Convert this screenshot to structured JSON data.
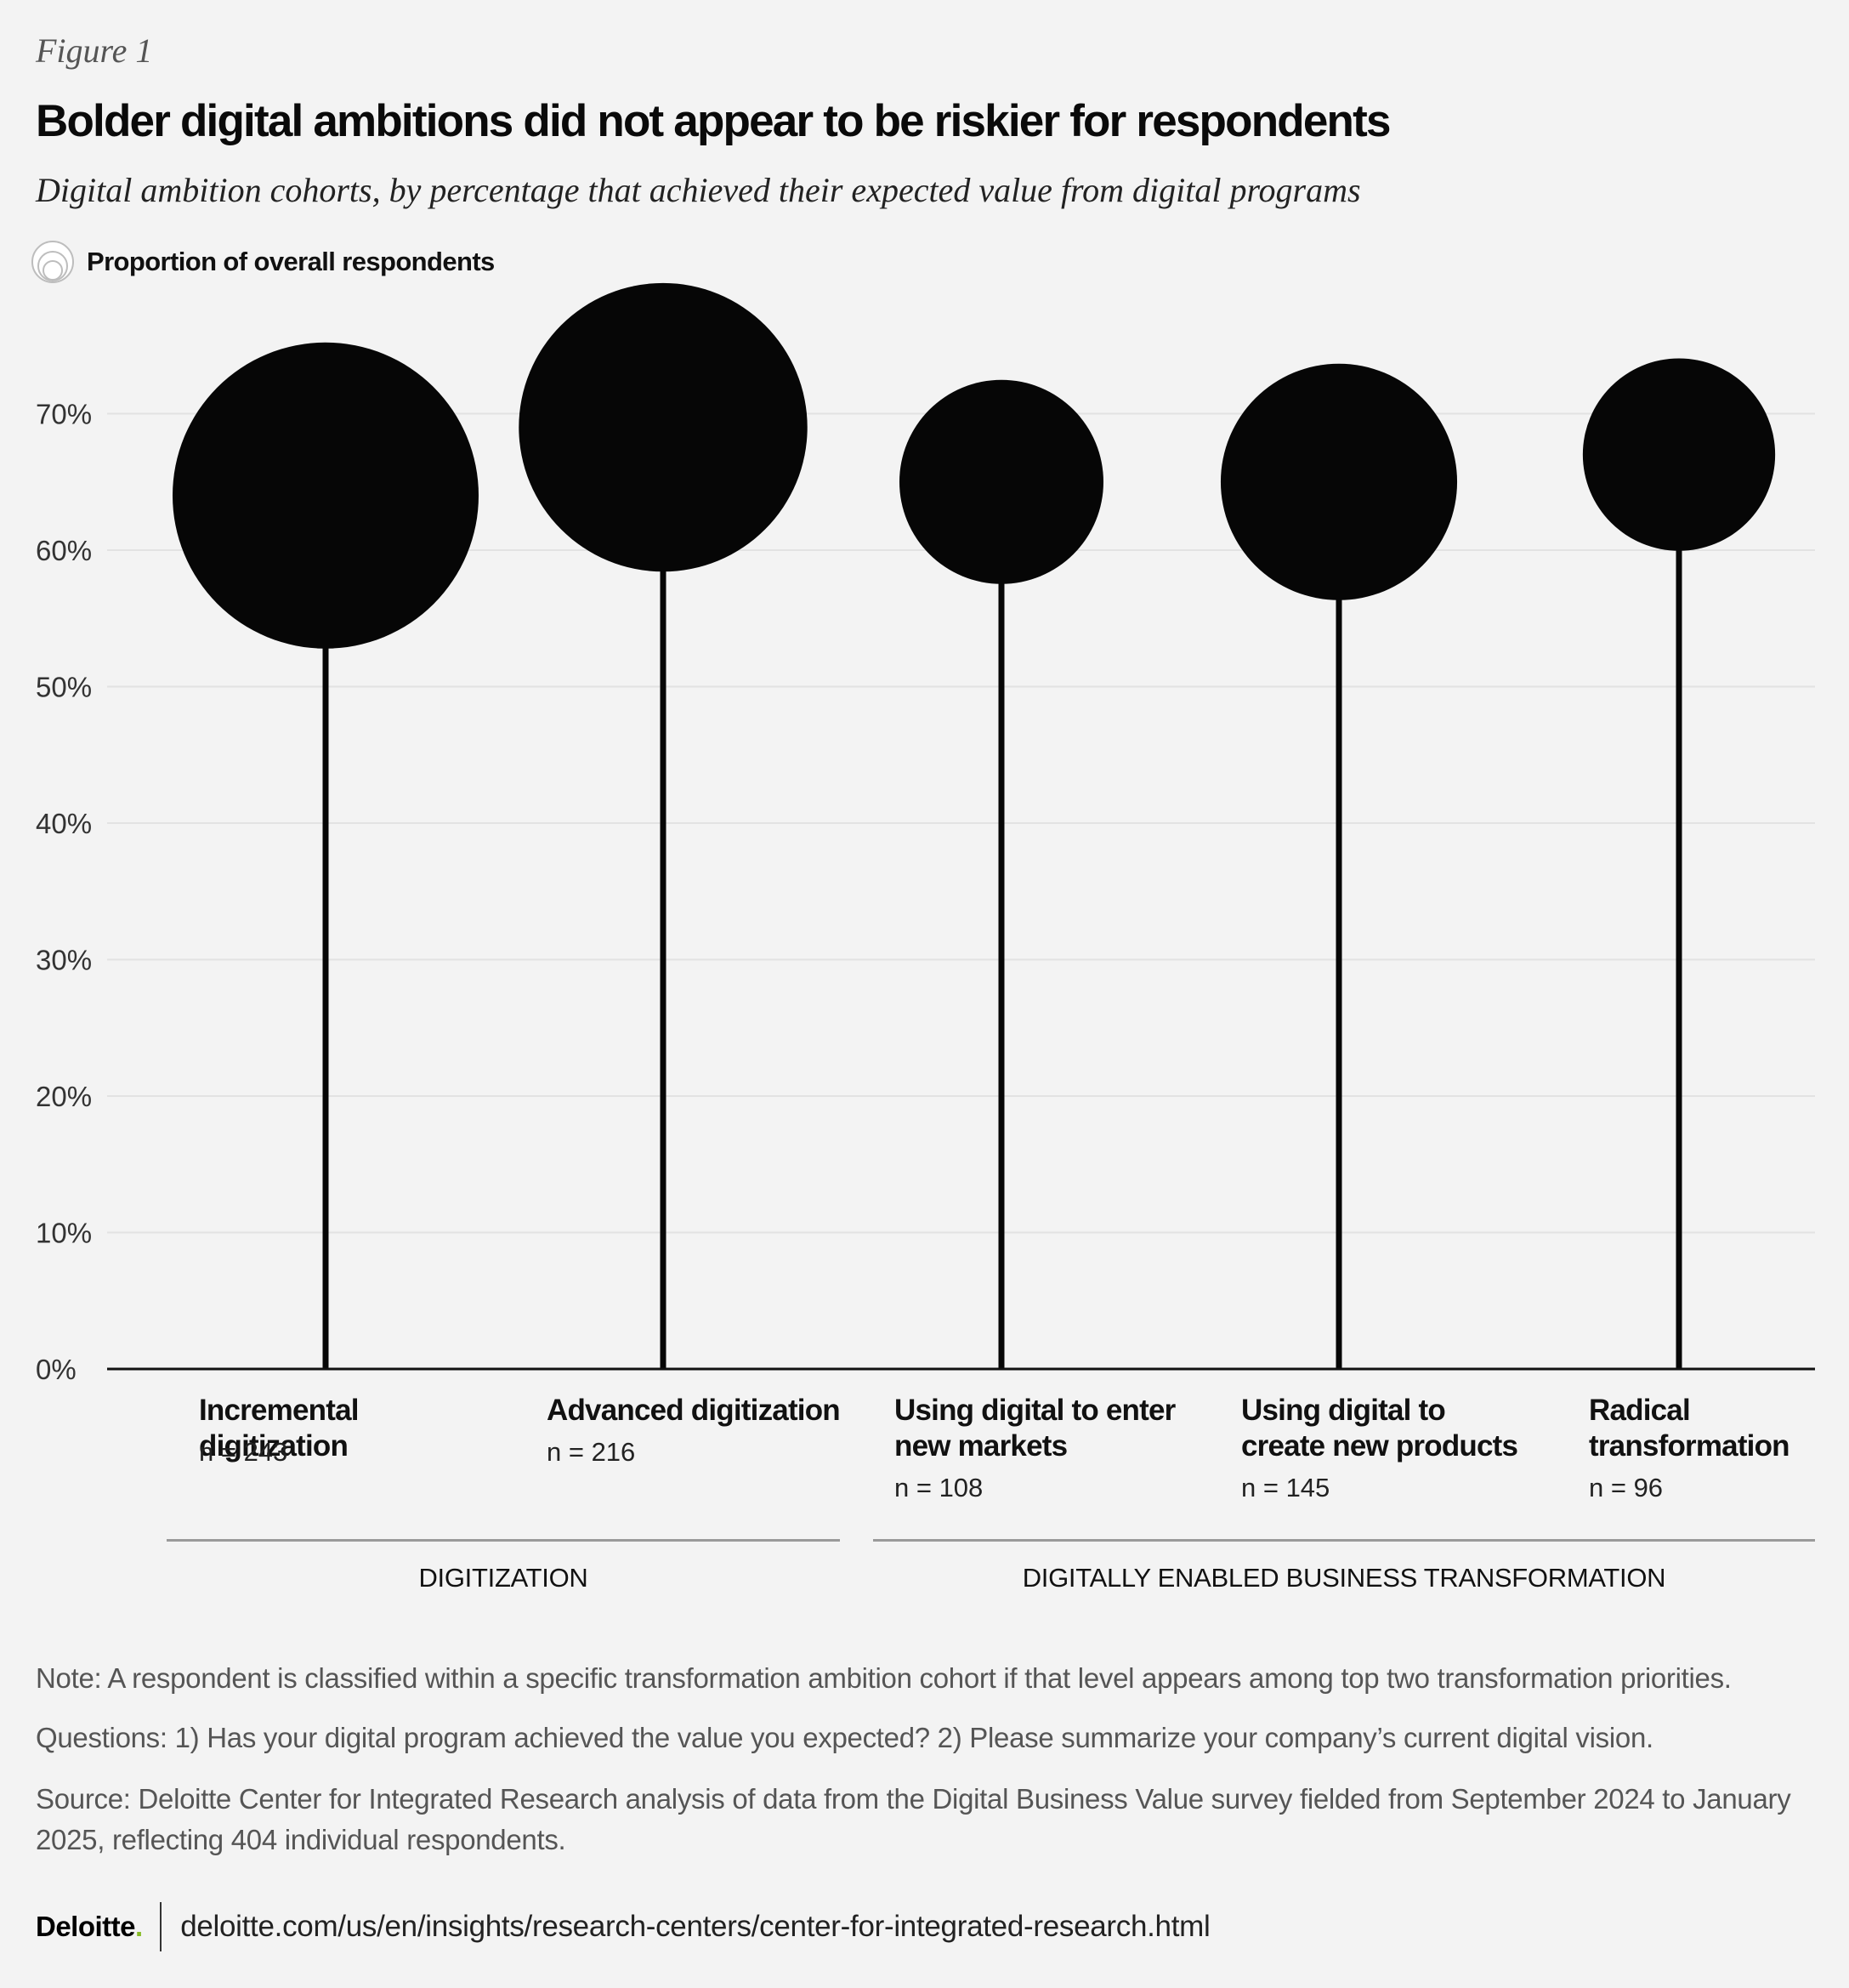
{
  "figure_label": "Figure 1",
  "title": "Bolder digital ambitions did not appear to be riskier for respondents",
  "subtitle": "Digital ambition cohorts, by percentage that achieved their expected value from digital programs",
  "legend": {
    "label": "Proportion of overall respondents",
    "icon": "nested-circles-icon"
  },
  "chart_data": {
    "type": "scatter",
    "subtype": "lollipop-bubble",
    "title": "Bolder digital ambitions did not appear to be riskier for respondents",
    "subtitle": "Digital ambition cohorts, by percentage that achieved their expected value from digital programs",
    "ylim": [
      0,
      70
    ],
    "yticks": [
      0,
      10,
      20,
      30,
      40,
      50,
      60,
      70
    ],
    "ytick_labels": [
      "0%",
      "10%",
      "20%",
      "30%",
      "40%",
      "50%",
      "60%",
      "70%"
    ],
    "grid": true,
    "size_legend": "Proportion of overall respondents",
    "categories": [
      {
        "label": "Incremental digitization",
        "n_label": "n = 243",
        "n": 243,
        "value": 64,
        "group": "DIGITIZATION"
      },
      {
        "label": "Advanced digitization",
        "n_label": "n = 216",
        "n": 216,
        "value": 69,
        "group": "DIGITIZATION"
      },
      {
        "label": "Using digital to enter new markets",
        "n_label": "n = 108",
        "n": 108,
        "value": 65,
        "group": "DIGITALLY ENABLED BUSINESS TRANSFORMATION"
      },
      {
        "label": "Using digital to create new products",
        "n_label": "n = 145",
        "n": 145,
        "value": 65,
        "group": "DIGITALLY ENABLED BUSINESS TRANSFORMATION"
      },
      {
        "label": "Radical transformation",
        "n_label": "n = 96",
        "n": 96,
        "value": 67,
        "group": "DIGITALLY ENABLED BUSINESS TRANSFORMATION"
      }
    ],
    "groups": [
      "DIGITIZATION",
      "DIGITALLY ENABLED BUSINESS TRANSFORMATION"
    ],
    "colors": {
      "marker": "#060606",
      "grid": "#e2e2e2",
      "axis": "#111111"
    }
  },
  "labels": {
    "cat0_line1": "Incremental digitization",
    "cat0_line2": "",
    "cat1_line1": "Advanced digitization",
    "cat1_line2": "",
    "cat2_line1": "Using digital to enter",
    "cat2_line2": "new markets",
    "cat3_line1": "Using digital to",
    "cat3_line2": "create new products",
    "cat4_line1": "Radical",
    "cat4_line2": "transformation"
  },
  "groups": {
    "g1": "DIGITIZATION",
    "g2": "DIGITALLY ENABLED BUSINESS TRANSFORMATION"
  },
  "notes": {
    "note": "Note: A respondent is classified within a specific transformation ambition cohort if that level appears among top two transformation priorities.",
    "questions": "Questions: 1) Has your digital program achieved the value you expected? 2) Please summarize your company’s current digital vision.",
    "source": "Source: Deloitte Center for Integrated Research analysis of data from the Digital Business Value survey fielded from September 2024 to January 2025, reflecting 404 individual respondents."
  },
  "footer": {
    "brand": "Deloitte",
    "brand_dot": ".",
    "brand_color": "#86bc25",
    "url": "deloitte.com/us/en/insights/research-centers/center-for-integrated-research.html"
  }
}
